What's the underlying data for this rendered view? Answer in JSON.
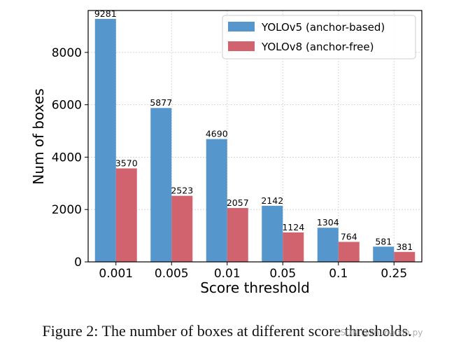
{
  "chart_data": {
    "type": "bar",
    "categories": [
      "0.001",
      "0.005",
      "0.01",
      "0.05",
      "0.1",
      "0.25"
    ],
    "series": [
      {
        "name": "YOLOv5 (anchor-based)",
        "color": "#5596cc",
        "values": [
          9281,
          5877,
          4690,
          2142,
          1304,
          581
        ]
      },
      {
        "name": "YOLOv8 (anchor-free)",
        "color": "#d1636e",
        "values": [
          3570,
          2523,
          2057,
          1124,
          764,
          381
        ]
      }
    ],
    "title": "",
    "xlabel": "Score threshold",
    "ylabel": "Num of boxes",
    "ylim": [
      0,
      9600
    ],
    "yticks": [
      0,
      2000,
      4000,
      6000,
      8000
    ],
    "grid": true,
    "legend_position": "top-right"
  },
  "caption": "Figure 2: The number of boxes at different score thresholds.",
  "watermark": "CSDN @zhunaixin.py"
}
